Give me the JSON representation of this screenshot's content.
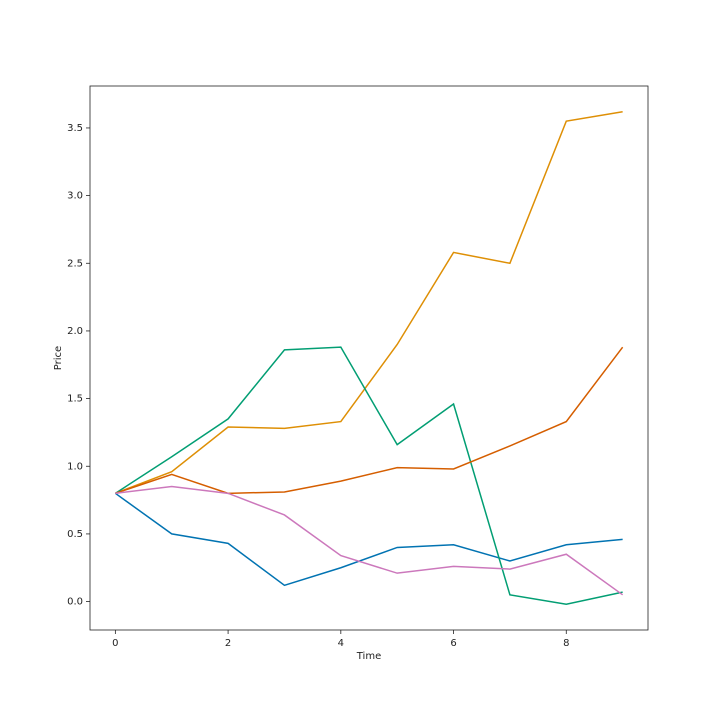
{
  "chart_data": {
    "type": "line",
    "xlabel": "Time",
    "ylabel": "Price",
    "x": [
      0,
      1,
      2,
      3,
      4,
      5,
      6,
      7,
      8,
      9
    ],
    "series": [
      {
        "color": "#0173b2",
        "values": [
          0.8,
          0.5,
          0.43,
          0.12,
          0.25,
          0.4,
          0.42,
          0.3,
          0.42,
          0.46
        ]
      },
      {
        "color": "#de8f05",
        "values": [
          0.8,
          0.96,
          1.29,
          1.28,
          1.33,
          1.9,
          2.58,
          2.5,
          3.55,
          3.62
        ]
      },
      {
        "color": "#029e73",
        "values": [
          0.8,
          1.07,
          1.35,
          1.86,
          1.88,
          1.16,
          1.46,
          0.05,
          -0.02,
          0.07
        ]
      },
      {
        "color": "#d55e00",
        "values": [
          0.8,
          0.94,
          0.8,
          0.81,
          0.89,
          0.99,
          0.98,
          1.15,
          1.33,
          1.88
        ]
      },
      {
        "color": "#cc78bc",
        "values": [
          0.8,
          0.85,
          0.8,
          0.64,
          0.34,
          0.21,
          0.26,
          0.24,
          0.35,
          0.05
        ]
      }
    ],
    "xlim": [
      -0.45,
      9.45
    ],
    "xticks": [
      0,
      2,
      4,
      6,
      8
    ],
    "ylim": [
      -0.21,
      3.81
    ],
    "yticks": [
      {
        "value": 0,
        "label": "0.0"
      },
      0.5,
      {
        "value": 1,
        "label": "1.0"
      },
      1.5,
      {
        "value": 2,
        "label": "2.0"
      },
      2.5,
      {
        "value": 3,
        "label": "3.0"
      },
      3.5
    ],
    "grid": false
  }
}
